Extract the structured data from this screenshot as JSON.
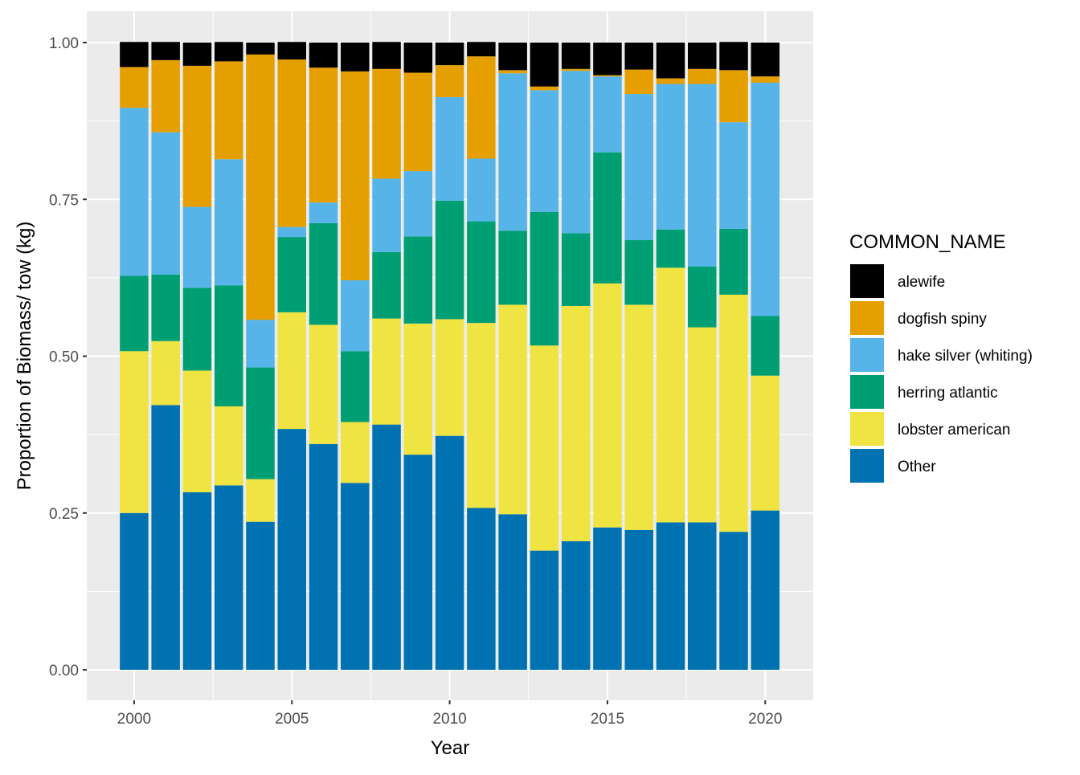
{
  "chart_data": {
    "type": "bar",
    "stacked": true,
    "x": [
      2000,
      2001,
      2002,
      2003,
      2004,
      2005,
      2006,
      2007,
      2008,
      2009,
      2010,
      2011,
      2012,
      2013,
      2014,
      2015,
      2016,
      2017,
      2018,
      2019,
      2020
    ],
    "xlabel": "Year",
    "ylabel": "Proportion of Biomass/ tow (kg)",
    "ylim": [
      0,
      1
    ],
    "xlim": [
      1999.1,
      2020.9
    ],
    "x_ticks": [
      2000,
      2005,
      2010,
      2015,
      2020
    ],
    "x_tick_labels": [
      "2000",
      "2005",
      "2010",
      "2015",
      "2020"
    ],
    "y_ticks": [
      0,
      0.25,
      0.5,
      0.75,
      1
    ],
    "y_tick_labels": [
      "0.00",
      "0.25",
      "0.50",
      "0.75",
      "1.00"
    ],
    "grid": true,
    "legend": {
      "title": "COMMON_NAME",
      "position": "right",
      "order": [
        "alewife",
        "dogfish spiny",
        "hake silver (whiting)",
        "herring atlantic",
        "lobster american",
        "Other"
      ]
    },
    "series": [
      {
        "name": "Other",
        "color": "#0072B2",
        "values": [
          0.25,
          0.422,
          0.283,
          0.294,
          0.236,
          0.384,
          0.36,
          0.298,
          0.391,
          0.343,
          0.373,
          0.258,
          0.248,
          0.19,
          0.205,
          0.227,
          0.223,
          0.235,
          0.235,
          0.22,
          0.254
        ]
      },
      {
        "name": "lobster american",
        "color": "#F0E442",
        "values": [
          0.258,
          0.102,
          0.194,
          0.126,
          0.068,
          0.186,
          0.19,
          0.097,
          0.169,
          0.209,
          0.186,
          0.295,
          0.334,
          0.327,
          0.375,
          0.389,
          0.359,
          0.406,
          0.311,
          0.378,
          0.215
        ]
      },
      {
        "name": "herring atlantic",
        "color": "#009E73",
        "values": [
          0.12,
          0.106,
          0.132,
          0.193,
          0.178,
          0.12,
          0.162,
          0.113,
          0.106,
          0.139,
          0.189,
          0.162,
          0.118,
          0.213,
          0.116,
          0.209,
          0.103,
          0.061,
          0.097,
          0.105,
          0.095
        ]
      },
      {
        "name": "hake silver (whiting)",
        "color": "#56B4E9",
        "values": [
          0.268,
          0.227,
          0.129,
          0.201,
          0.076,
          0.016,
          0.033,
          0.113,
          0.117,
          0.104,
          0.165,
          0.1,
          0.251,
          0.194,
          0.259,
          0.121,
          0.233,
          0.232,
          0.291,
          0.17,
          0.372
        ]
      },
      {
        "name": "dogfish spiny",
        "color": "#E69F00",
        "values": [
          0.065,
          0.115,
          0.225,
          0.156,
          0.423,
          0.267,
          0.215,
          0.333,
          0.175,
          0.157,
          0.051,
          0.163,
          0.005,
          0.006,
          0.003,
          0.002,
          0.039,
          0.009,
          0.024,
          0.083,
          0.01
        ]
      },
      {
        "name": "alewife",
        "color": "#000000",
        "values": [
          0.04,
          0.029,
          0.037,
          0.031,
          0.019,
          0.028,
          0.04,
          0.046,
          0.043,
          0.048,
          0.036,
          0.023,
          0.044,
          0.07,
          0.042,
          0.052,
          0.043,
          0.057,
          0.042,
          0.045,
          0.054
        ]
      }
    ],
    "colors": {
      "panel_background": "#EBEBEB",
      "grid_line": "#FFFFFF",
      "tick_text": "#4D4D4D",
      "tick_mark": "#333333"
    }
  }
}
